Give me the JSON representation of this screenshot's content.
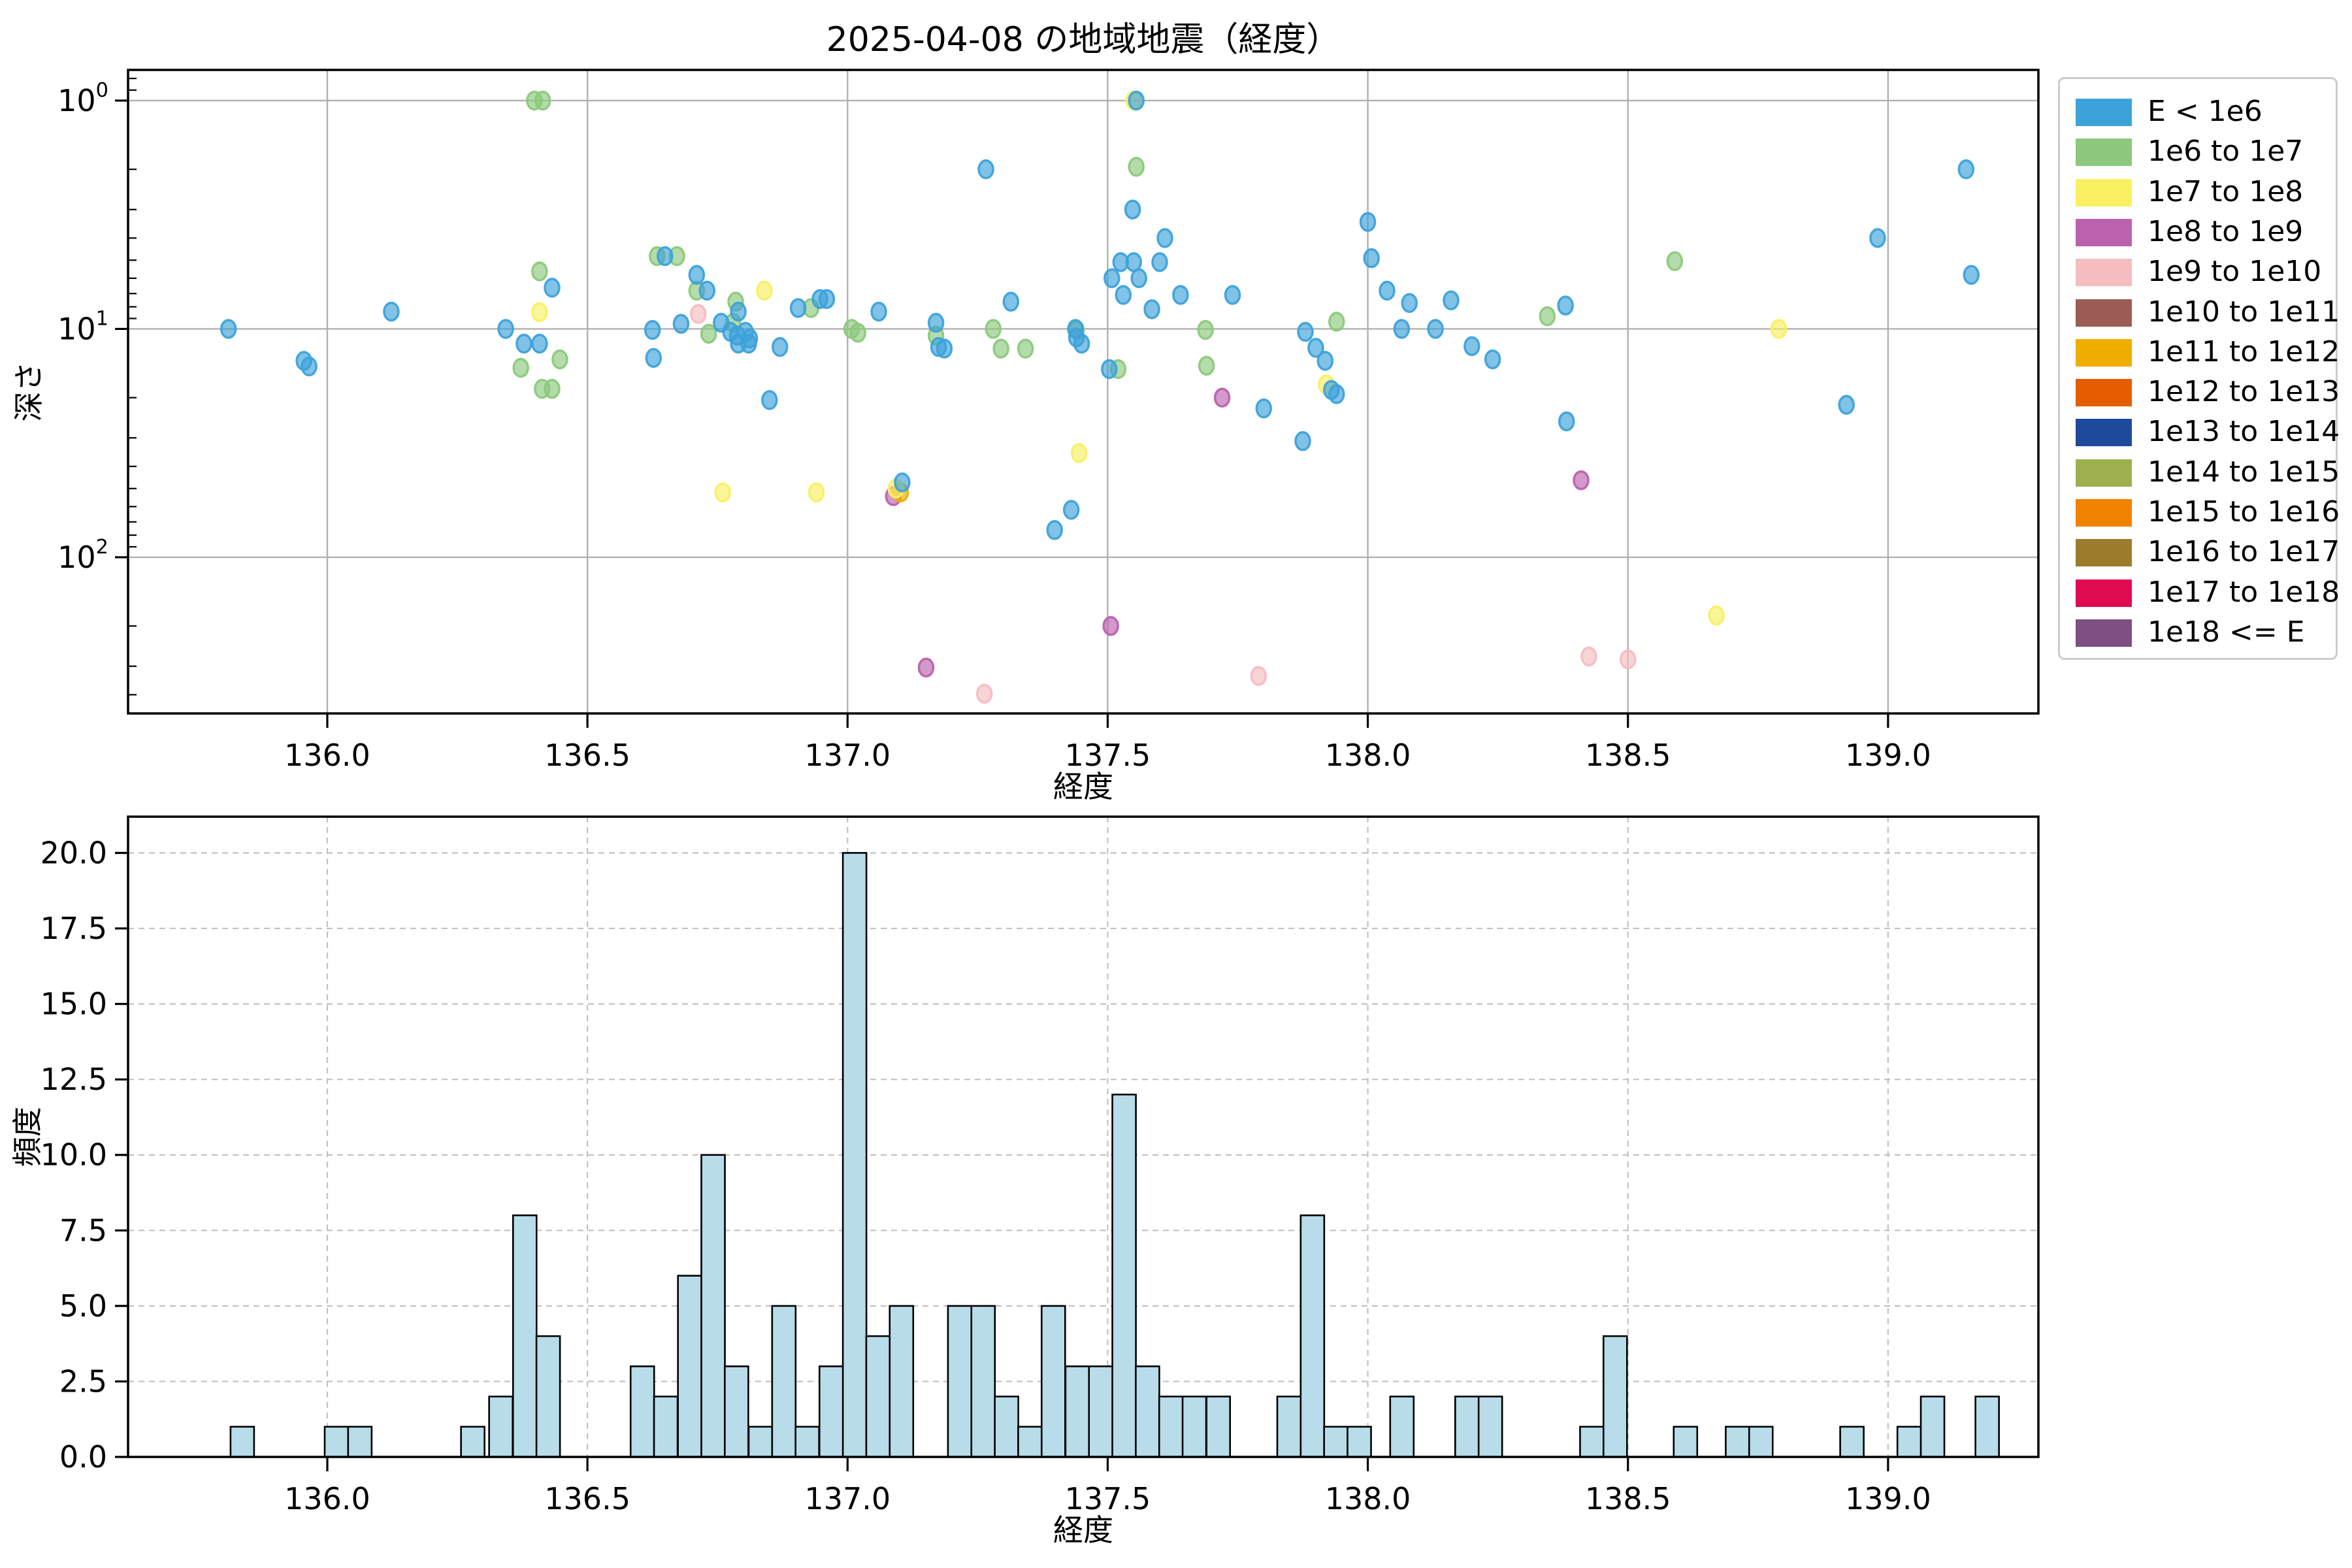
{
  "chart_data": [
    {
      "type": "scatter",
      "title": "2025-04-08 の地域地震（経度）",
      "xlabel": "経度",
      "ylabel": "深さ",
      "xlim": [
        135.617,
        139.289
      ],
      "ylim": [
        0.734,
        483
      ],
      "yscale": "log-inverted",
      "x_ticks": [
        136.0,
        136.5,
        137.0,
        137.5,
        138.0,
        138.5,
        139.0
      ],
      "y_tick_exponents": [
        0,
        1,
        2
      ],
      "grid": "solid",
      "legend_position": "outside-upper-right",
      "series": [
        {
          "name": "1e9 to 1e10",
          "color": "#f5bdc0",
          "points": [
            [
              136.713,
              8.6
            ],
            [
              137.263,
              396
            ],
            [
              137.79,
              331
            ],
            [
              138.425,
              272
            ],
            [
              138.5,
              280
            ]
          ]
        },
        {
          "name": "1e8 to 1e9",
          "color": "#ba62ad",
          "points": [
            [
              137.088,
              54
            ],
            [
              137.151,
              304
            ],
            [
              137.506,
              200
            ],
            [
              137.72,
              20
            ],
            [
              138.41,
              46
            ]
          ]
        },
        {
          "name": "1e11 to 1e12",
          "color": "#f0ae00",
          "points": [
            [
              137.102,
              52
            ]
          ]
        },
        {
          "name": "1e7 to 1e8",
          "color": "#f9f062",
          "points": [
            [
              136.408,
              8.45
            ],
            [
              136.76,
              52
            ],
            [
              136.84,
              6.8
            ],
            [
              136.94,
              52
            ],
            [
              137.093,
              50
            ],
            [
              137.445,
              35
            ],
            [
              137.55,
              1.0
            ],
            [
              137.92,
              17.5
            ],
            [
              138.67,
              180
            ],
            [
              138.79,
              10
            ]
          ]
        },
        {
          "name": "1e6 to 1e7",
          "color": "#8cc97c",
          "points": [
            [
              136.398,
              1.0
            ],
            [
              136.414,
              1.0
            ],
            [
              136.408,
              5.6
            ],
            [
              136.372,
              14.8
            ],
            [
              136.447,
              13.6
            ],
            [
              136.413,
              18.3
            ],
            [
              136.432,
              18.3
            ],
            [
              136.634,
              4.8
            ],
            [
              136.672,
              4.8
            ],
            [
              136.71,
              6.8
            ],
            [
              136.785,
              7.6
            ],
            [
              136.78,
              9.4
            ],
            [
              136.733,
              10.5
            ],
            [
              136.93,
              8.1
            ],
            [
              137.008,
              10
            ],
            [
              137.02,
              10.4
            ],
            [
              137.17,
              10.7
            ],
            [
              137.28,
              10
            ],
            [
              137.295,
              12.2
            ],
            [
              137.342,
              12.2
            ],
            [
              137.44,
              10.1
            ],
            [
              137.52,
              15
            ],
            [
              137.555,
              1.95
            ],
            [
              137.688,
              10.1
            ],
            [
              137.69,
              14.5
            ],
            [
              137.94,
              9.3
            ],
            [
              138.345,
              8.8
            ],
            [
              138.59,
              5.05
            ]
          ]
        },
        {
          "name": "E < 1e6",
          "color": "#3da2da",
          "points": [
            [
              135.81,
              10
            ],
            [
              135.955,
              13.8
            ],
            [
              135.965,
              14.6
            ],
            [
              136.123,
              8.4
            ],
            [
              136.343,
              10
            ],
            [
              136.378,
              11.6
            ],
            [
              136.408,
              11.6
            ],
            [
              136.432,
              6.6
            ],
            [
              136.649,
              4.8
            ],
            [
              136.71,
              5.8
            ],
            [
              136.73,
              6.8
            ],
            [
              136.625,
              10.1
            ],
            [
              136.627,
              13.4
            ],
            [
              136.68,
              9.5
            ],
            [
              136.757,
              9.4
            ],
            [
              136.775,
              10.3
            ],
            [
              136.79,
              8.4
            ],
            [
              136.788,
              10.7
            ],
            [
              136.804,
              10.3
            ],
            [
              136.812,
              11
            ],
            [
              136.79,
              11.6
            ],
            [
              136.81,
              11.6
            ],
            [
              136.85,
              20.5
            ],
            [
              136.87,
              12
            ],
            [
              136.905,
              8.1
            ],
            [
              136.947,
              7.4
            ],
            [
              136.96,
              7.4
            ],
            [
              137.06,
              8.4
            ],
            [
              137.105,
              47
            ],
            [
              137.17,
              9.4
            ],
            [
              137.175,
              12
            ],
            [
              137.186,
              12.2
            ],
            [
              137.266,
              2.0
            ],
            [
              137.314,
              7.6
            ],
            [
              137.398,
              76
            ],
            [
              137.43,
              62
            ],
            [
              137.438,
              10
            ],
            [
              137.44,
              10.9
            ],
            [
              137.45,
              11.6
            ],
            [
              137.503,
              15
            ],
            [
              137.508,
              6.0
            ],
            [
              137.525,
              5.1
            ],
            [
              137.53,
              7.1
            ],
            [
              137.548,
              3.0
            ],
            [
              137.55,
              5.1
            ],
            [
              137.555,
              1.0
            ],
            [
              137.56,
              6.0
            ],
            [
              137.585,
              8.2
            ],
            [
              137.6,
              5.1
            ],
            [
              137.61,
              4.0
            ],
            [
              137.64,
              7.1
            ],
            [
              137.74,
              7.1
            ],
            [
              137.8,
              22.3
            ],
            [
              137.875,
              31
            ],
            [
              137.88,
              10.3
            ],
            [
              137.9,
              12.1
            ],
            [
              137.918,
              13.8
            ],
            [
              137.93,
              18.5
            ],
            [
              137.94,
              19.3
            ],
            [
              138.0,
              3.4
            ],
            [
              138.007,
              4.9
            ],
            [
              138.037,
              6.8
            ],
            [
              138.065,
              10
            ],
            [
              138.08,
              7.7
            ],
            [
              138.13,
              10
            ],
            [
              138.16,
              7.5
            ],
            [
              138.2,
              11.9
            ],
            [
              138.24,
              13.6
            ],
            [
              138.38,
              7.9
            ],
            [
              138.382,
              25.4
            ],
            [
              138.92,
              21.5
            ],
            [
              138.98,
              4.0
            ],
            [
              139.15,
              2.0
            ],
            [
              139.16,
              5.8
            ]
          ]
        }
      ]
    },
    {
      "type": "bar",
      "xlabel": "経度",
      "ylabel": "頻度",
      "xlim": [
        135.617,
        139.289
      ],
      "ylim": [
        0,
        21.2
      ],
      "x_ticks": [
        136.0,
        136.5,
        137.0,
        137.5,
        138.0,
        138.5,
        139.0
      ],
      "y_ticks": [
        0.0,
        2.5,
        5.0,
        7.5,
        10.0,
        12.5,
        15.0,
        17.5,
        20.0
      ],
      "grid": "dashed",
      "bin_width": 0.04523,
      "bar_color": "#b8dce9",
      "bar_edge_color": "#000000",
      "bars": [
        [
          135.814,
          1
        ],
        [
          135.995,
          1
        ],
        [
          136.04,
          1
        ],
        [
          136.257,
          1
        ],
        [
          136.311,
          2
        ],
        [
          136.357,
          8
        ],
        [
          136.402,
          4
        ],
        [
          136.583,
          3
        ],
        [
          136.628,
          2
        ],
        [
          136.674,
          6
        ],
        [
          136.719,
          10
        ],
        [
          136.764,
          3
        ],
        [
          136.81,
          1
        ],
        [
          136.855,
          5
        ],
        [
          136.9,
          1
        ],
        [
          136.946,
          3
        ],
        [
          136.991,
          20
        ],
        [
          137.036,
          4
        ],
        [
          137.081,
          5
        ],
        [
          137.193,
          5
        ],
        [
          137.238,
          5
        ],
        [
          137.283,
          2
        ],
        [
          137.328,
          1
        ],
        [
          137.373,
          5
        ],
        [
          137.419,
          3
        ],
        [
          137.464,
          3
        ],
        [
          137.509,
          12
        ],
        [
          137.554,
          3
        ],
        [
          137.599,
          2
        ],
        [
          137.644,
          2
        ],
        [
          137.69,
          2
        ],
        [
          137.826,
          2
        ],
        [
          137.871,
          8
        ],
        [
          137.916,
          1
        ],
        [
          137.961,
          1
        ],
        [
          138.043,
          2
        ],
        [
          138.168,
          2
        ],
        [
          138.213,
          2
        ],
        [
          138.408,
          1
        ],
        [
          138.453,
          4
        ],
        [
          138.588,
          1
        ],
        [
          138.688,
          1
        ],
        [
          138.733,
          1
        ],
        [
          138.908,
          1
        ],
        [
          139.018,
          1
        ],
        [
          139.063,
          2
        ],
        [
          139.168,
          2
        ]
      ]
    }
  ],
  "legend": {
    "entries": [
      {
        "label": "E < 1e6",
        "color": "#3da2da"
      },
      {
        "label": "1e6 to 1e7",
        "color": "#8cc97c"
      },
      {
        "label": "1e7 to 1e8",
        "color": "#f9f062"
      },
      {
        "label": "1e8 to 1e9",
        "color": "#ba62ad"
      },
      {
        "label": "1e9 to 1e10",
        "color": "#f5bdc0"
      },
      {
        "label": "1e10 to 1e11",
        "color": "#9c5c55"
      },
      {
        "label": "1e11 to 1e12",
        "color": "#f0ae00"
      },
      {
        "label": "1e12 to 1e13",
        "color": "#e55d00"
      },
      {
        "label": "1e13 to 1e14",
        "color": "#1e4a9c"
      },
      {
        "label": "1e14 to 1e15",
        "color": "#9cb14e"
      },
      {
        "label": "1e15 to 1e16",
        "color": "#f08200"
      },
      {
        "label": "1e16 to 1e17",
        "color": "#9d7b2d"
      },
      {
        "label": "1e17 to 1e18",
        "color": "#e00a50"
      },
      {
        "label": "1e18 <= E",
        "color": "#7d4f82"
      }
    ]
  },
  "style": {
    "grid_color_top": "#b0b0b0",
    "grid_color_bottom": "#c2c2c2",
    "spine_color": "#000000",
    "tick_label_size": 46,
    "axis_label_size": 46
  }
}
